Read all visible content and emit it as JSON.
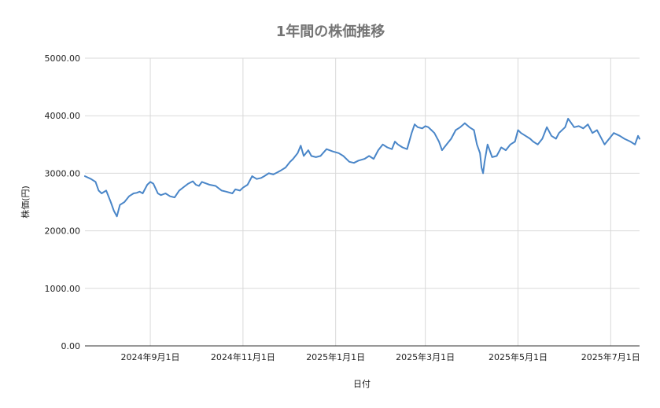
{
  "chart_data": {
    "type": "line",
    "title": "1年間の株価推移",
    "xlabel": "日付",
    "ylabel": "株価(円)",
    "ylim": [
      0,
      5000
    ],
    "y_ticks": [
      "0.00",
      "1000.00",
      "2000.00",
      "3000.00",
      "4000.00",
      "5000.00"
    ],
    "y_tick_values": [
      0,
      1000,
      2000,
      3000,
      4000,
      5000
    ],
    "x_range": [
      "2024-07-20",
      "2025-07-20"
    ],
    "x_ticks": [
      {
        "label": "2024年9月1日",
        "date": "2024-09-01"
      },
      {
        "label": "2024年11月1日",
        "date": "2024-11-01"
      },
      {
        "label": "2025年1月1日",
        "date": "2025-01-01"
      },
      {
        "label": "2025年3月1日",
        "date": "2025-03-01"
      },
      {
        "label": "2025年5月1日",
        "date": "2025-05-01"
      },
      {
        "label": "2025年7月1日",
        "date": "2025-07-01"
      }
    ],
    "grid": true,
    "color": "#4a86c8",
    "series": [
      {
        "x": [
          "2024-07-20",
          "2024-07-24",
          "2024-07-27",
          "2024-07-29",
          "2024-07-31",
          "2024-08-03",
          "2024-08-06",
          "2024-08-08",
          "2024-08-10",
          "2024-08-12",
          "2024-08-15",
          "2024-08-18",
          "2024-08-21",
          "2024-08-23",
          "2024-08-25",
          "2024-08-27",
          "2024-08-30",
          "2024-09-01",
          "2024-09-03",
          "2024-09-06",
          "2024-09-08",
          "2024-09-11",
          "2024-09-14",
          "2024-09-17",
          "2024-09-20",
          "2024-09-23",
          "2024-09-26",
          "2024-09-29",
          "2024-10-01",
          "2024-10-03",
          "2024-10-05",
          "2024-10-08",
          "2024-10-10",
          "2024-10-14",
          "2024-10-18",
          "2024-10-21",
          "2024-10-25",
          "2024-10-27",
          "2024-10-30",
          "2024-11-01",
          "2024-11-04",
          "2024-11-07",
          "2024-11-10",
          "2024-11-13",
          "2024-11-15",
          "2024-11-18",
          "2024-11-21",
          "2024-11-24",
          "2024-11-26",
          "2024-11-29",
          "2024-12-02",
          "2024-12-04",
          "2024-12-07",
          "2024-12-09",
          "2024-12-11",
          "2024-12-14",
          "2024-12-16",
          "2024-12-19",
          "2024-12-22",
          "2024-12-26",
          "2024-12-30",
          "2025-01-03",
          "2025-01-06",
          "2025-01-10",
          "2025-01-13",
          "2025-01-16",
          "2025-01-20",
          "2025-01-23",
          "2025-01-26",
          "2025-01-29",
          "2025-02-01",
          "2025-02-04",
          "2025-02-07",
          "2025-02-09",
          "2025-02-11",
          "2025-02-14",
          "2025-02-17",
          "2025-02-20",
          "2025-02-22",
          "2025-02-24",
          "2025-02-27",
          "2025-03-01",
          "2025-03-03",
          "2025-03-05",
          "2025-03-07",
          "2025-03-10",
          "2025-03-12",
          "2025-03-15",
          "2025-03-18",
          "2025-03-21",
          "2025-03-24",
          "2025-03-27",
          "2025-03-30",
          "2025-04-02",
          "2025-04-04",
          "2025-04-06",
          "2025-04-07",
          "2025-04-08",
          "2025-04-09",
          "2025-04-11",
          "2025-04-14",
          "2025-04-17",
          "2025-04-20",
          "2025-04-23",
          "2025-04-26",
          "2025-04-29",
          "2025-05-01",
          "2025-05-03",
          "2025-05-06",
          "2025-05-09",
          "2025-05-11",
          "2025-05-14",
          "2025-05-17",
          "2025-05-20",
          "2025-05-23",
          "2025-05-26",
          "2025-05-28",
          "2025-06-01",
          "2025-06-03",
          "2025-06-07",
          "2025-06-10",
          "2025-06-13",
          "2025-06-16",
          "2025-06-19",
          "2025-06-22",
          "2025-06-24",
          "2025-06-27",
          "2025-06-30",
          "2025-07-03",
          "2025-07-07",
          "2025-07-10",
          "2025-07-14",
          "2025-07-17",
          "2025-07-19",
          "2025-07-20"
        ],
        "values": [
          2950,
          2900,
          2850,
          2700,
          2650,
          2700,
          2500,
          2350,
          2250,
          2450,
          2500,
          2600,
          2650,
          2660,
          2680,
          2650,
          2800,
          2850,
          2820,
          2650,
          2620,
          2650,
          2600,
          2580,
          2700,
          2760,
          2820,
          2860,
          2800,
          2780,
          2850,
          2820,
          2800,
          2780,
          2700,
          2680,
          2650,
          2720,
          2700,
          2750,
          2800,
          2950,
          2900,
          2920,
          2950,
          3000,
          2980,
          3020,
          3050,
          3100,
          3200,
          3250,
          3350,
          3480,
          3300,
          3400,
          3300,
          3280,
          3300,
          3420,
          3380,
          3350,
          3300,
          3200,
          3180,
          3220,
          3250,
          3300,
          3250,
          3400,
          3500,
          3450,
          3420,
          3550,
          3500,
          3450,
          3420,
          3700,
          3850,
          3800,
          3780,
          3820,
          3800,
          3750,
          3700,
          3550,
          3400,
          3500,
          3600,
          3750,
          3800,
          3870,
          3800,
          3750,
          3500,
          3350,
          3100,
          3000,
          3200,
          3500,
          3280,
          3300,
          3450,
          3400,
          3500,
          3550,
          3750,
          3700,
          3650,
          3600,
          3550,
          3500,
          3600,
          3800,
          3650,
          3600,
          3700,
          3800,
          3950,
          3800,
          3820,
          3780,
          3850,
          3700,
          3750,
          3650,
          3500,
          3600,
          3700,
          3650,
          3600,
          3550,
          3500,
          3650,
          3600
        ]
      }
    ]
  }
}
